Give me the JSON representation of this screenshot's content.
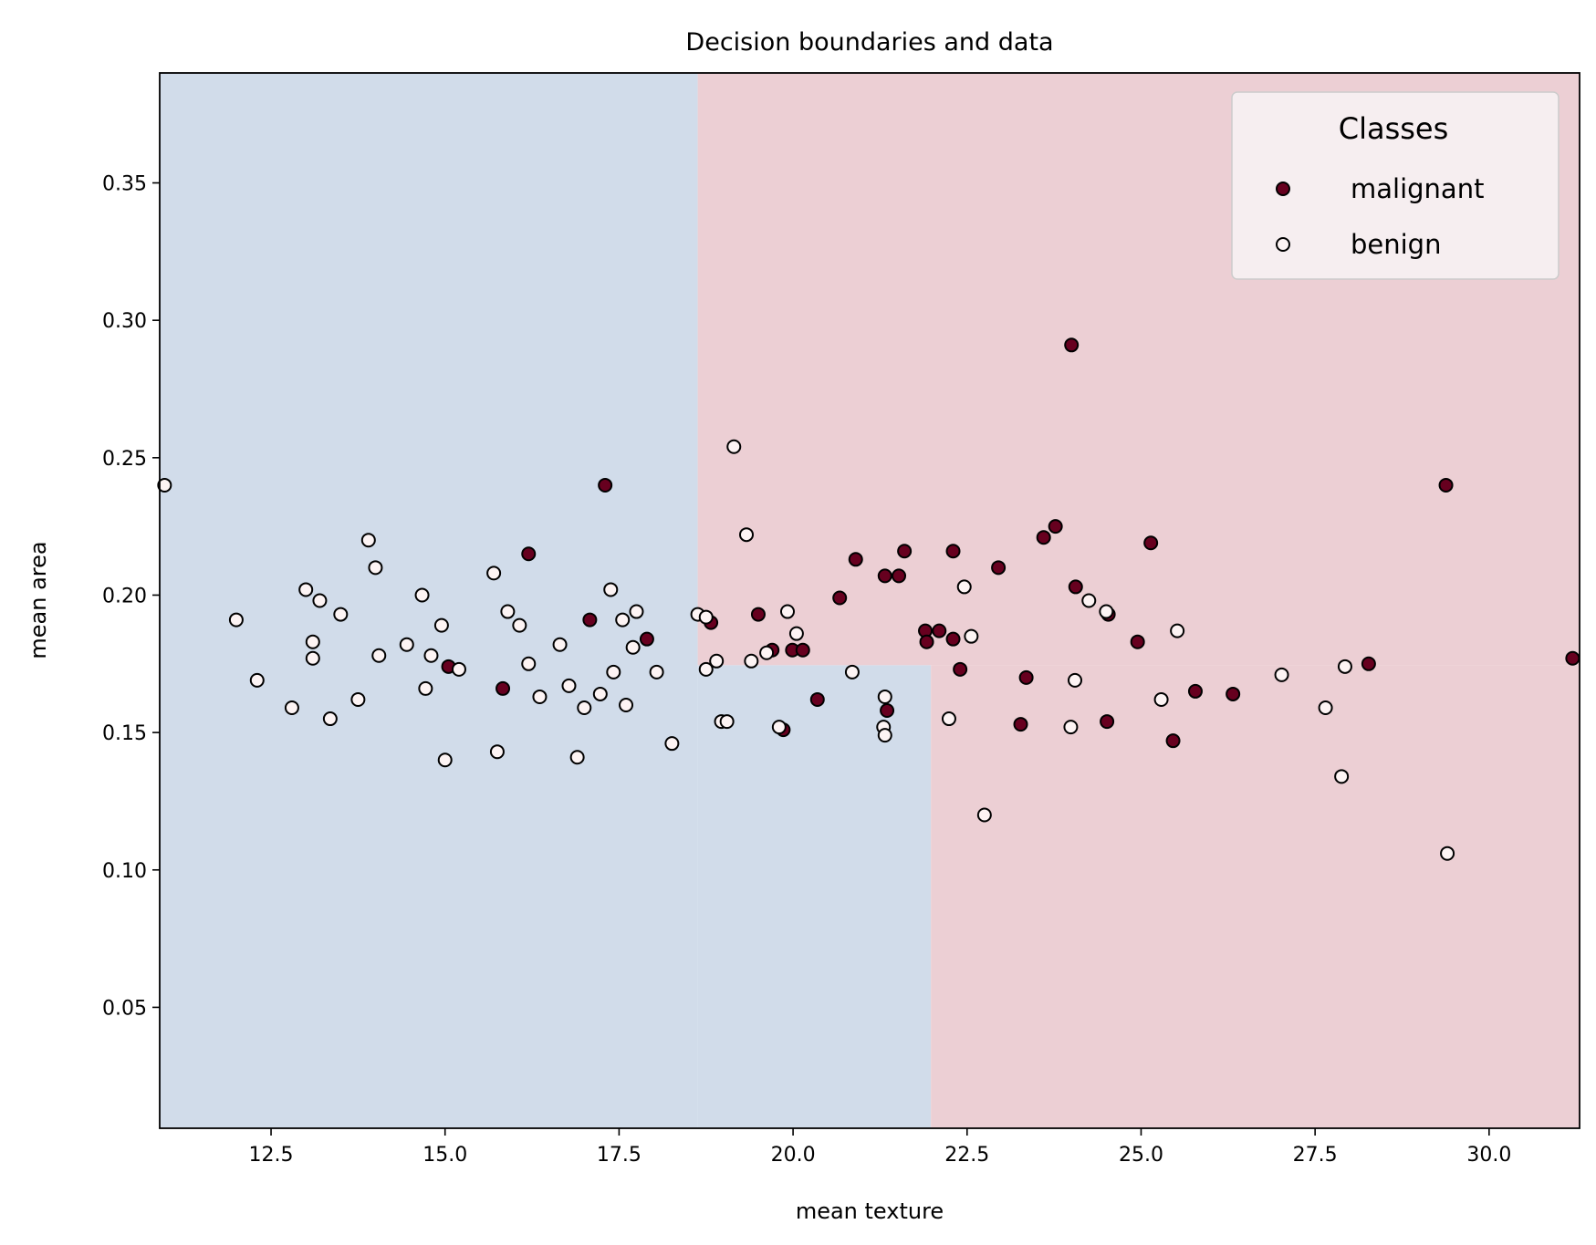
{
  "chart_data": {
    "type": "scatter",
    "title": "Decision boundaries and data",
    "xlabel": "mean texture",
    "ylabel": "mean area",
    "xlim": [
      10.9,
      31.3
    ],
    "ylim": [
      0.006,
      0.39
    ],
    "xticks": [
      "12.5",
      "15.0",
      "17.5",
      "20.0",
      "22.5",
      "25.0",
      "27.5",
      "30.0"
    ],
    "yticks": [
      "0.05",
      "0.10",
      "0.15",
      "0.20",
      "0.25",
      "0.30",
      "0.35"
    ],
    "grid": false,
    "legend_title": "Classes",
    "legend_position": "top-right",
    "colors": {
      "malignant": "#67001f",
      "benign": "#fdf4f4",
      "region_malignant": "#eccfd4",
      "region_benign": "#d1dcea",
      "marker_edge": "#000000"
    },
    "decision_regions": [
      {
        "class": "benign",
        "x": [
          10.9,
          18.63
        ],
        "y": [
          0.006,
          0.39
        ]
      },
      {
        "class": "benign",
        "x": [
          18.63,
          21.98
        ],
        "y": [
          0.006,
          0.1745
        ]
      },
      {
        "class": "malignant",
        "x": [
          18.63,
          31.3
        ],
        "y": [
          0.1745,
          0.39
        ]
      },
      {
        "class": "malignant",
        "x": [
          21.98,
          31.3
        ],
        "y": [
          0.006,
          0.1745
        ]
      }
    ],
    "series": [
      {
        "name": "malignant",
        "points": [
          [
            17.3,
            0.24
          ],
          [
            16.2,
            0.215
          ],
          [
            17.08,
            0.191
          ],
          [
            17.9,
            0.184
          ],
          [
            15.05,
            0.174
          ],
          [
            15.83,
            0.166
          ],
          [
            18.82,
            0.19
          ],
          [
            19.5,
            0.193
          ],
          [
            19.7,
            0.18
          ],
          [
            19.99,
            0.18
          ],
          [
            20.14,
            0.18
          ],
          [
            19.86,
            0.151
          ],
          [
            20.67,
            0.199
          ],
          [
            20.9,
            0.213
          ],
          [
            21.32,
            0.207
          ],
          [
            21.52,
            0.207
          ],
          [
            21.6,
            0.216
          ],
          [
            20.35,
            0.162
          ],
          [
            21.35,
            0.158
          ],
          [
            21.9,
            0.187
          ],
          [
            22.1,
            0.187
          ],
          [
            21.92,
            0.183
          ],
          [
            22.3,
            0.216
          ],
          [
            22.3,
            0.184
          ],
          [
            22.4,
            0.173
          ],
          [
            22.95,
            0.21
          ],
          [
            23.27,
            0.153
          ],
          [
            23.35,
            0.17
          ],
          [
            23.6,
            0.221
          ],
          [
            23.77,
            0.225
          ],
          [
            24.0,
            0.291
          ],
          [
            24.06,
            0.203
          ],
          [
            24.51,
            0.154
          ],
          [
            24.53,
            0.193
          ],
          [
            24.95,
            0.183
          ],
          [
            25.14,
            0.219
          ],
          [
            25.46,
            0.147
          ],
          [
            25.78,
            0.165
          ],
          [
            26.32,
            0.164
          ],
          [
            28.27,
            0.175
          ],
          [
            29.38,
            0.24
          ],
          [
            31.2,
            0.177
          ]
        ]
      },
      {
        "name": "benign",
        "points": [
          [
            10.97,
            0.24
          ],
          [
            12.0,
            0.191
          ],
          [
            12.3,
            0.169
          ],
          [
            12.8,
            0.159
          ],
          [
            13.0,
            0.202
          ],
          [
            13.2,
            0.198
          ],
          [
            13.1,
            0.177
          ],
          [
            13.1,
            0.183
          ],
          [
            13.5,
            0.193
          ],
          [
            13.35,
            0.155
          ],
          [
            13.9,
            0.22
          ],
          [
            14.0,
            0.21
          ],
          [
            13.75,
            0.162
          ],
          [
            14.05,
            0.178
          ],
          [
            14.45,
            0.182
          ],
          [
            14.67,
            0.2
          ],
          [
            14.72,
            0.166
          ],
          [
            14.8,
            0.178
          ],
          [
            14.95,
            0.189
          ],
          [
            15.0,
            0.14
          ],
          [
            15.2,
            0.173
          ],
          [
            15.7,
            0.208
          ],
          [
            15.75,
            0.143
          ],
          [
            15.9,
            0.194
          ],
          [
            16.07,
            0.189
          ],
          [
            16.2,
            0.175
          ],
          [
            16.36,
            0.163
          ],
          [
            16.65,
            0.182
          ],
          [
            16.78,
            0.167
          ],
          [
            16.9,
            0.141
          ],
          [
            17.0,
            0.159
          ],
          [
            17.23,
            0.164
          ],
          [
            17.38,
            0.202
          ],
          [
            17.42,
            0.172
          ],
          [
            17.55,
            0.191
          ],
          [
            17.6,
            0.16
          ],
          [
            17.7,
            0.181
          ],
          [
            17.75,
            0.194
          ],
          [
            18.04,
            0.172
          ],
          [
            18.26,
            0.146
          ],
          [
            18.63,
            0.193
          ],
          [
            18.75,
            0.192
          ],
          [
            18.75,
            0.173
          ],
          [
            18.9,
            0.176
          ],
          [
            18.97,
            0.154
          ],
          [
            19.05,
            0.154
          ],
          [
            19.15,
            0.254
          ],
          [
            19.33,
            0.222
          ],
          [
            19.4,
            0.176
          ],
          [
            19.62,
            0.179
          ],
          [
            19.8,
            0.152
          ],
          [
            19.92,
            0.194
          ],
          [
            20.05,
            0.186
          ],
          [
            20.85,
            0.172
          ],
          [
            21.32,
            0.163
          ],
          [
            21.3,
            0.152
          ],
          [
            21.32,
            0.149
          ],
          [
            22.24,
            0.155
          ],
          [
            22.46,
            0.203
          ],
          [
            22.56,
            0.185
          ],
          [
            22.75,
            0.12
          ],
          [
            23.99,
            0.152
          ],
          [
            24.05,
            0.169
          ],
          [
            24.25,
            0.198
          ],
          [
            24.5,
            0.194
          ],
          [
            25.29,
            0.162
          ],
          [
            25.52,
            0.187
          ],
          [
            27.02,
            0.171
          ],
          [
            27.65,
            0.159
          ],
          [
            27.88,
            0.134
          ],
          [
            27.93,
            0.174
          ],
          [
            29.4,
            0.106
          ]
        ]
      }
    ]
  }
}
